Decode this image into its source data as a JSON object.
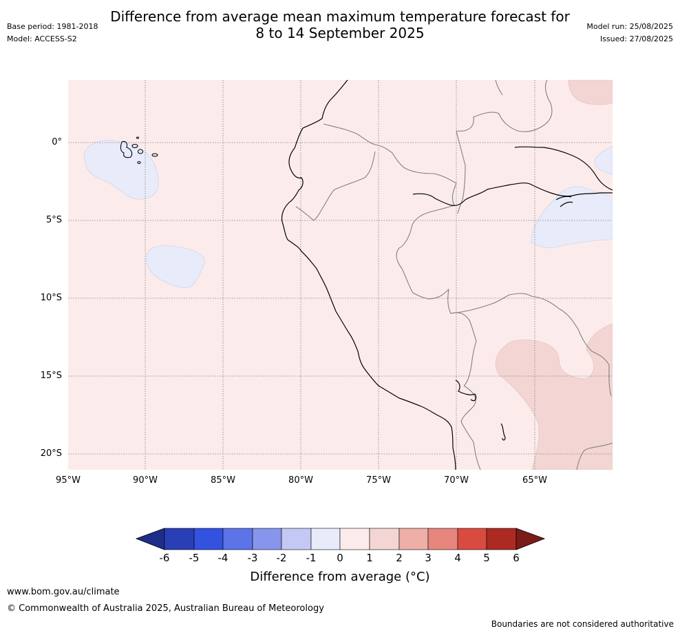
{
  "header": {
    "title_line1": "Difference from average mean maximum temperature forecast for",
    "title_line2": "8 to 14 September 2025",
    "base_period": "Base period: 1981-2018",
    "model": "Model: ACCESS-S2",
    "model_run": "Model run: 25/08/2025",
    "issued": "Issued: 27/08/2025"
  },
  "map": {
    "region": "Western South America (Ecuador, Peru, Galapagos)",
    "lat_labels": [
      "0°",
      "5°S",
      "10°S",
      "15°S",
      "20°S"
    ],
    "lon_labels": [
      "95°W",
      "90°W",
      "85°W",
      "80°W",
      "75°W",
      "70°W",
      "65°W"
    ],
    "colors": {
      "background_anomaly_0_to_1": "#fbeceb",
      "anomaly_1_to_2": "#f3d6d3",
      "anomaly_minus1_to_0": "#e8ebfa",
      "coastline": "#000000",
      "border": "#808080"
    }
  },
  "colorbar": {
    "title": "Difference from average (°C)",
    "ticks": [
      "-6",
      "-5",
      "-4",
      "-3",
      "-2",
      "-1",
      "0",
      "1",
      "2",
      "3",
      "4",
      "5",
      "6"
    ],
    "colors": [
      "#1f2d8a",
      "#2a3fb5",
      "#3352e0",
      "#5d73e8",
      "#8795ec",
      "#c3c9f4",
      "#e8ebfa",
      "#fbeceb",
      "#f3d6d3",
      "#eeafa8",
      "#e6867d",
      "#d94b3f",
      "#ac2a22",
      "#7a1c17"
    ]
  },
  "footer": {
    "website": "www.bom.gov.au/climate",
    "copyright": "© Commonwealth of Australia 2025, Australian Bureau of Meteorology",
    "disclaimer": "Boundaries are not considered authoritative"
  }
}
